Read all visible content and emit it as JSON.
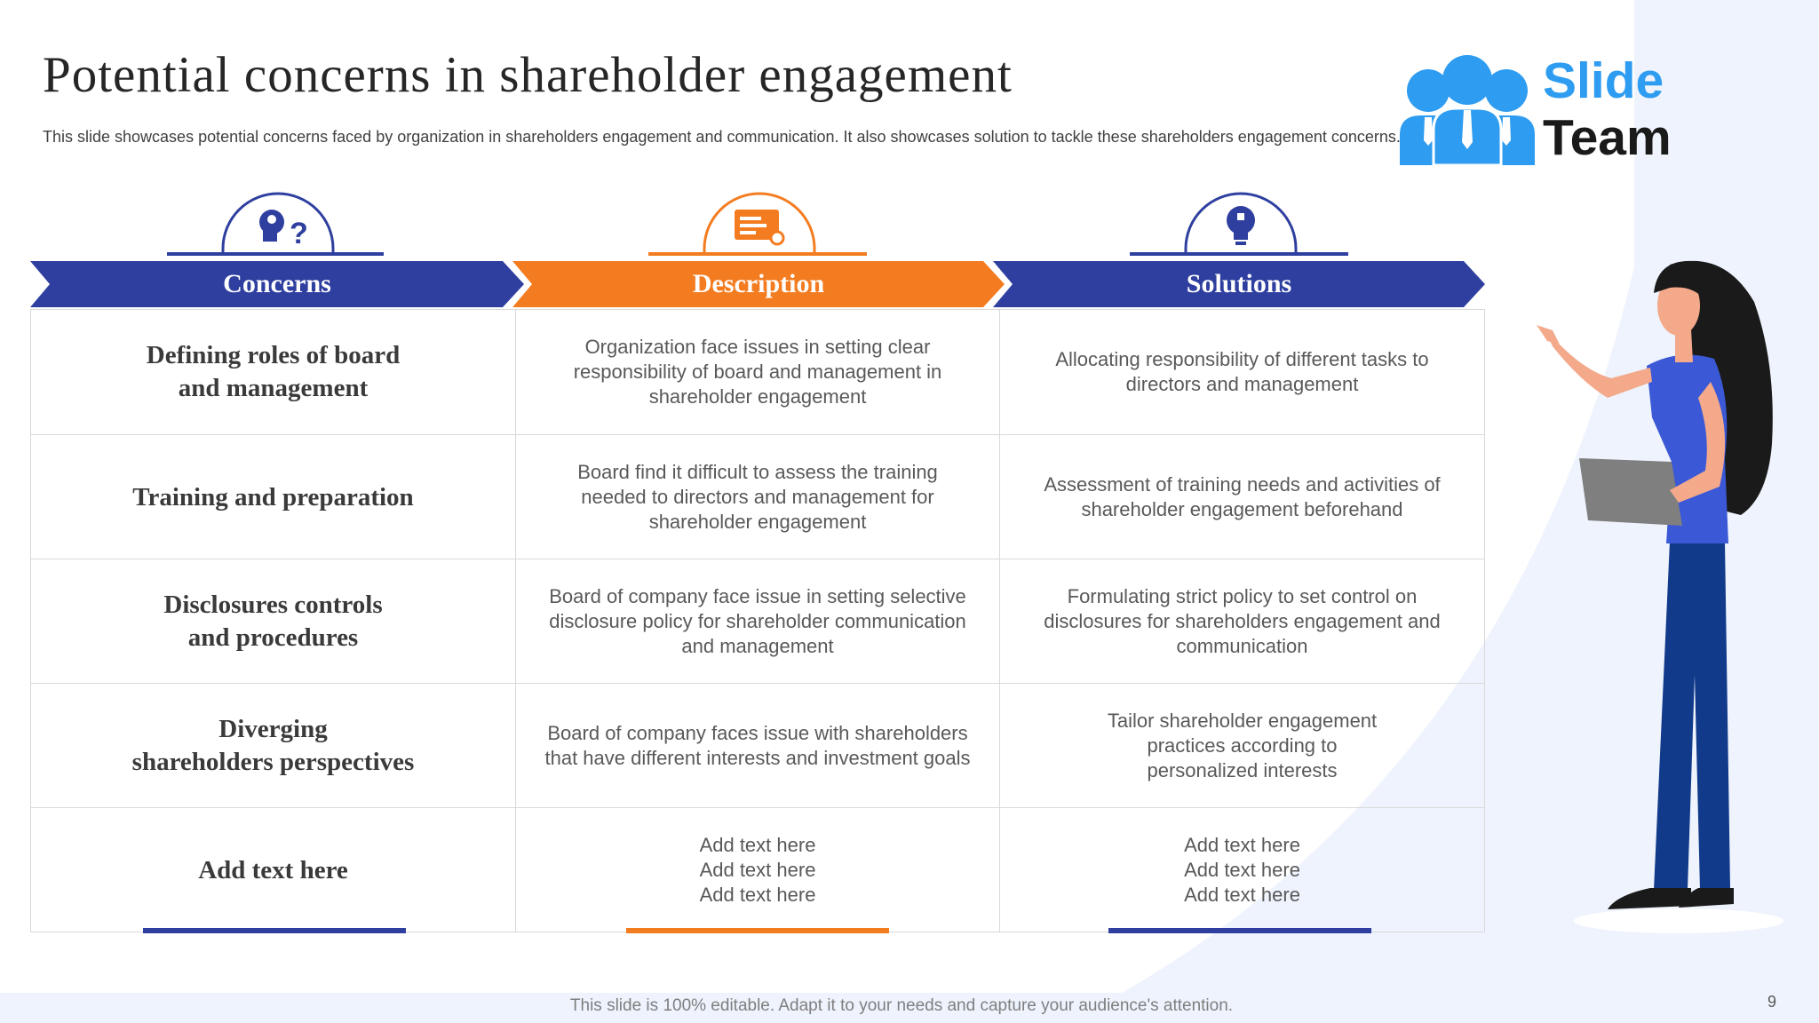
{
  "title": "Potential concerns in shareholder engagement",
  "subtitle": "This slide showcases potential concerns faced by organization in shareholders engagement and communication. It also showcases solution to tackle these shareholders engagement concerns.",
  "logo": {
    "line1": "Slide",
    "line2": "Team"
  },
  "columns": [
    {
      "label": "Concerns",
      "icon": "question-head-icon",
      "color": "#2f3f9f"
    },
    {
      "label": "Description",
      "icon": "document-settings-icon",
      "color": "#f47c20"
    },
    {
      "label": "Solutions",
      "icon": "bulb-puzzle-icon",
      "color": "#2f3f9f"
    }
  ],
  "rows": [
    {
      "concern": "Defining roles of  board\nand management",
      "description": "Organization face issues in setting clear\nresponsibility of board and management in\nshareholder engagement",
      "solution": "Allocating  responsibility of different tasks to\ndirectors and management"
    },
    {
      "concern": "Training and preparation",
      "description": "Board find it difficult to assess the training\nneeded to directors and management for\nshareholder engagement",
      "solution": "Assessment of training needs and activities of\nshareholder engagement beforehand"
    },
    {
      "concern": "Disclosures controls\nand procedures",
      "description": "Board of company face issue in setting selective\ndisclosure policy for shareholder communication\nand management",
      "solution": "Formulating strict policy to set control on\ndisclosures for shareholders engagement and\ncommunication"
    },
    {
      "concern": "Diverging\nshareholders perspectives",
      "description": "Board of company faces issue with shareholders\nthat have different interests and investment goals",
      "solution": "Tailor shareholder engagement\npractices according to\npersonalized interests"
    },
    {
      "concern": "Add text here",
      "description": "Add text here\nAdd text here\nAdd text here",
      "solution": "Add text here\nAdd text here\nAdd text here"
    }
  ],
  "footer": "This slide is 100% editable. Adapt it to your needs and capture your audience's attention.",
  "page_number": "9",
  "colors": {
    "blue": "#2f3f9f",
    "orange": "#f47c20",
    "logo_blue": "#2e9cf0"
  }
}
